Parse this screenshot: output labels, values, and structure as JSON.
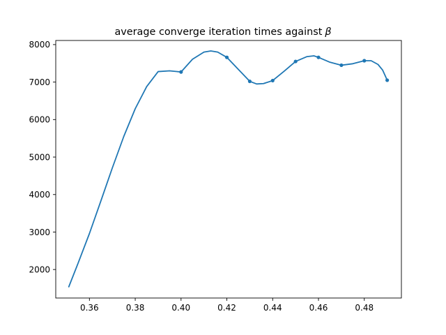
{
  "chart_data": {
    "type": "line",
    "title": "average converge iteration times against",
    "title_symbol": "β",
    "xlabel": "",
    "ylabel": "",
    "xlim": [
      0.3453,
      0.4962
    ],
    "ylim": [
      1240,
      8110
    ],
    "x_ticks": [
      0.36,
      0.38,
      0.4,
      0.42,
      0.44,
      0.46,
      0.48
    ],
    "x_tick_labels": [
      "0.36",
      "0.38",
      "0.40",
      "0.42",
      "0.44",
      "0.46",
      "0.48"
    ],
    "y_ticks": [
      2000,
      3000,
      4000,
      5000,
      6000,
      7000,
      8000
    ],
    "y_tick_labels": [
      "2000",
      "3000",
      "4000",
      "5000",
      "6000",
      "7000",
      "8000"
    ],
    "grid": false,
    "line_color": "#1f77b4",
    "series": [
      {
        "x": [
          0.4,
          0.42,
          0.43,
          0.44,
          0.45,
          0.46,
          0.47,
          0.48,
          0.49
        ],
        "values": [
          7270,
          7660,
          7020,
          7040,
          7550,
          7660,
          7450,
          7570,
          7050
        ]
      }
    ],
    "smooth_curve": {
      "x": [
        0.351,
        0.355,
        0.36,
        0.365,
        0.37,
        0.375,
        0.38,
        0.385,
        0.39,
        0.395,
        0.4,
        0.405,
        0.41,
        0.413,
        0.416,
        0.42,
        0.425,
        0.43,
        0.433,
        0.436,
        0.44,
        0.445,
        0.45,
        0.455,
        0.458,
        0.46,
        0.465,
        0.47,
        0.475,
        0.48,
        0.483,
        0.486,
        0.488,
        0.49
      ],
      "values": [
        1540,
        2160,
        2960,
        3830,
        4710,
        5550,
        6290,
        6880,
        7280,
        7300,
        7270,
        7610,
        7800,
        7830,
        7800,
        7660,
        7340,
        7020,
        6950,
        6960,
        7040,
        7290,
        7550,
        7680,
        7700,
        7660,
        7530,
        7450,
        7490,
        7570,
        7570,
        7470,
        7320,
        7050
      ]
    }
  }
}
